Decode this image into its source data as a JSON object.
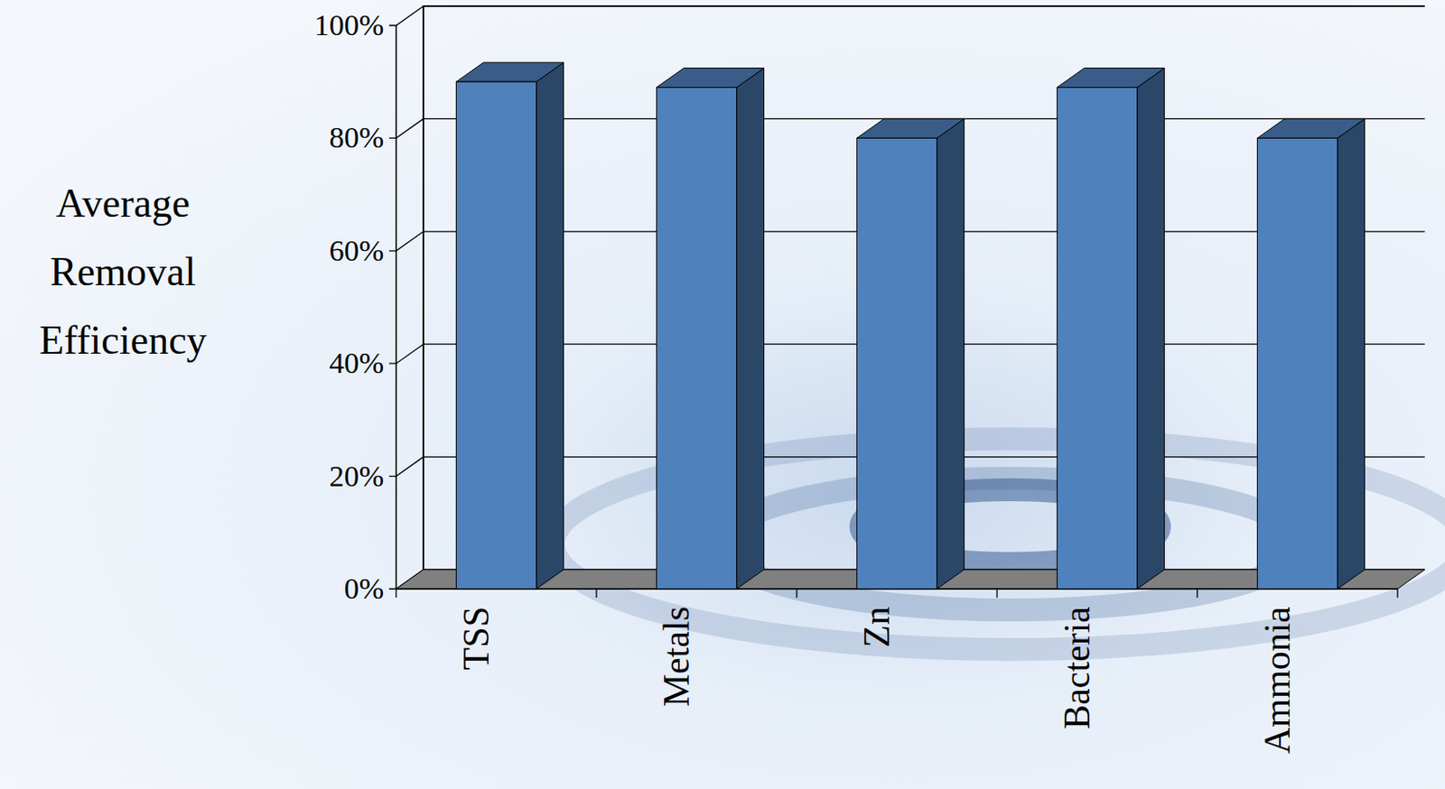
{
  "chart_data": {
    "type": "bar",
    "y_label": "Average Removal Efficiency",
    "categories": [
      "TSS",
      "Metals",
      "Zn",
      "Bacteria",
      "Ammonia"
    ],
    "values": [
      90,
      89,
      80,
      89,
      80
    ],
    "color": "#4f81bd",
    "ylim": [
      0,
      100
    ],
    "yticks": [
      {
        "value": 0,
        "label": "0%"
      },
      {
        "value": 20,
        "label": "20%"
      },
      {
        "value": 40,
        "label": "40%"
      },
      {
        "value": 60,
        "label": "60%"
      },
      {
        "value": 80,
        "label": "80%"
      },
      {
        "value": 100,
        "label": "100%"
      }
    ],
    "grid": true
  }
}
